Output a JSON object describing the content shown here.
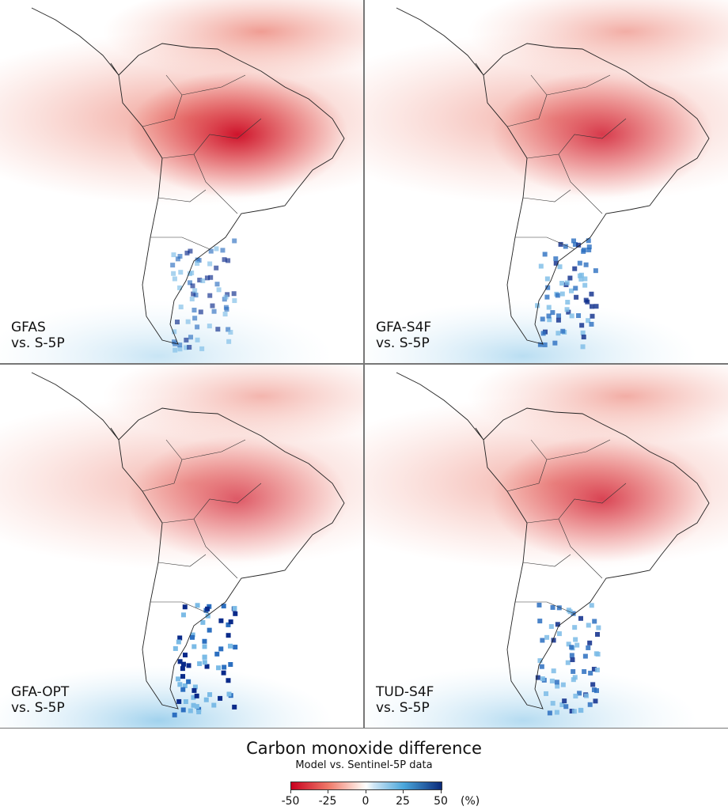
{
  "panels": [
    {
      "label": "GFAS\nvs. S-5P"
    },
    {
      "label": "GFA-S4F\nvs. S-5P"
    },
    {
      "label": "GFA-OPT\nvs. S-5P"
    },
    {
      "label": "TUD-S4F\nvs. S-5P"
    }
  ],
  "legend": {
    "title": "Carbon monoxide difference",
    "subtitle": "Model vs. Sentinel-5P data",
    "ticks": [
      "-50",
      "-25",
      "0",
      "25",
      "50"
    ],
    "unit": "(%)",
    "range": [
      -50,
      50
    ],
    "colors": {
      "negative": "#c8001e",
      "zero": "#ffffff",
      "positive": "#0a2a7a"
    }
  }
}
